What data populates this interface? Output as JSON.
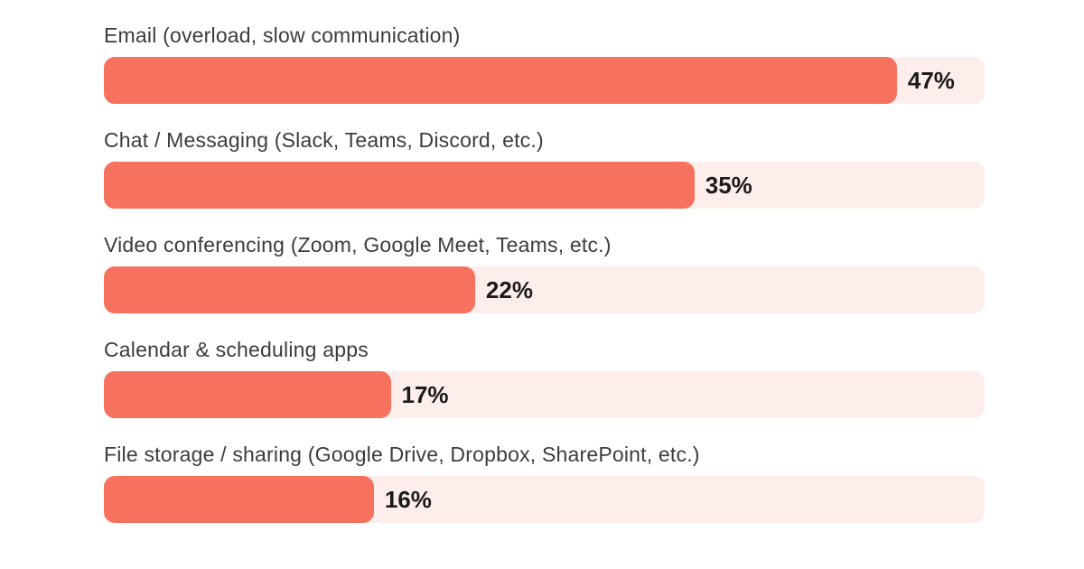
{
  "page": {
    "background": "#FFFFFF"
  },
  "chart_data": {
    "type": "bar",
    "orientation": "horizontal",
    "title": "",
    "xlabel": "",
    "ylabel": "",
    "grid": false,
    "legend": false,
    "value_label_position": "right-of-bar",
    "categories": [
      "Email (overload, slow communication)",
      "Chat / Messaging (Slack, Teams, Discord, etc.)",
      "Video conferencing (Zoom, Google Meet, Teams, etc.)",
      "Calendar & scheduling apps",
      "File storage / sharing (Google Drive, Dropbox, SharePoint, etc.)"
    ],
    "values": [
      47,
      35,
      22,
      17,
      16
    ],
    "value_labels": [
      "47%",
      "35%",
      "22%",
      "17%",
      "16%"
    ],
    "unit": "%",
    "xlim": [
      0,
      52.2
    ],
    "colors": {
      "bar": "#F7715F",
      "track": "#FDEEEB",
      "category_label": "#3C3C3C",
      "value_label": "#1B1B1B",
      "background": "#FFFFFF"
    }
  }
}
